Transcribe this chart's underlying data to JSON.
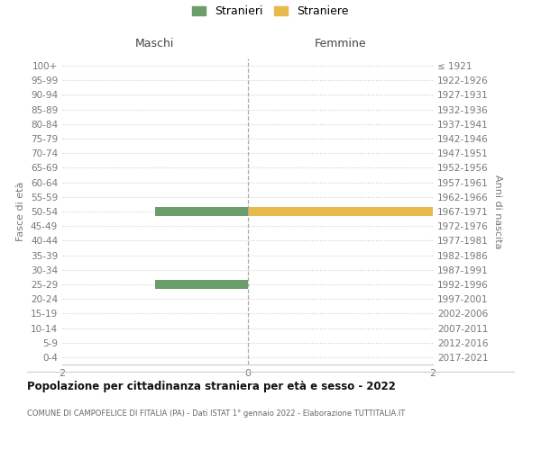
{
  "age_groups": [
    "100+",
    "95-99",
    "90-94",
    "85-89",
    "80-84",
    "75-79",
    "70-74",
    "65-69",
    "60-64",
    "55-59",
    "50-54",
    "45-49",
    "40-44",
    "35-39",
    "30-34",
    "25-29",
    "20-24",
    "15-19",
    "10-14",
    "5-9",
    "0-4"
  ],
  "birth_years": [
    "≤ 1921",
    "1922-1926",
    "1927-1931",
    "1932-1936",
    "1937-1941",
    "1942-1946",
    "1947-1951",
    "1952-1956",
    "1957-1961",
    "1962-1966",
    "1967-1971",
    "1972-1976",
    "1977-1981",
    "1982-1986",
    "1987-1991",
    "1992-1996",
    "1997-2001",
    "2002-2006",
    "2007-2011",
    "2012-2016",
    "2017-2021"
  ],
  "males": [
    0,
    0,
    0,
    0,
    0,
    0,
    0,
    0,
    0,
    0,
    1,
    0,
    0,
    0,
    0,
    1,
    0,
    0,
    0,
    0,
    0
  ],
  "females": [
    0,
    0,
    0,
    0,
    0,
    0,
    0,
    0,
    0,
    0,
    2,
    0,
    0,
    0,
    0,
    0,
    0,
    0,
    0,
    0,
    0
  ],
  "male_color": "#6b9e6b",
  "female_color": "#e8b84b",
  "xlim": 2,
  "title": "Popolazione per cittadinanza straniera per età e sesso - 2022",
  "subtitle": "COMUNE DI CAMPOFELICE DI FITALIA (PA) - Dati ISTAT 1° gennaio 2022 - Elaborazione TUTTITALIA.IT",
  "ylabel_left": "Fasce di età",
  "ylabel_right": "Anni di nascita",
  "header_left": "Maschi",
  "header_right": "Femmine",
  "legend_stranieri": "Stranieri",
  "legend_straniere": "Straniere",
  "background_color": "#ffffff",
  "grid_color": "#cccccc",
  "axis_label_color": "#777777",
  "text_color": "#444444"
}
